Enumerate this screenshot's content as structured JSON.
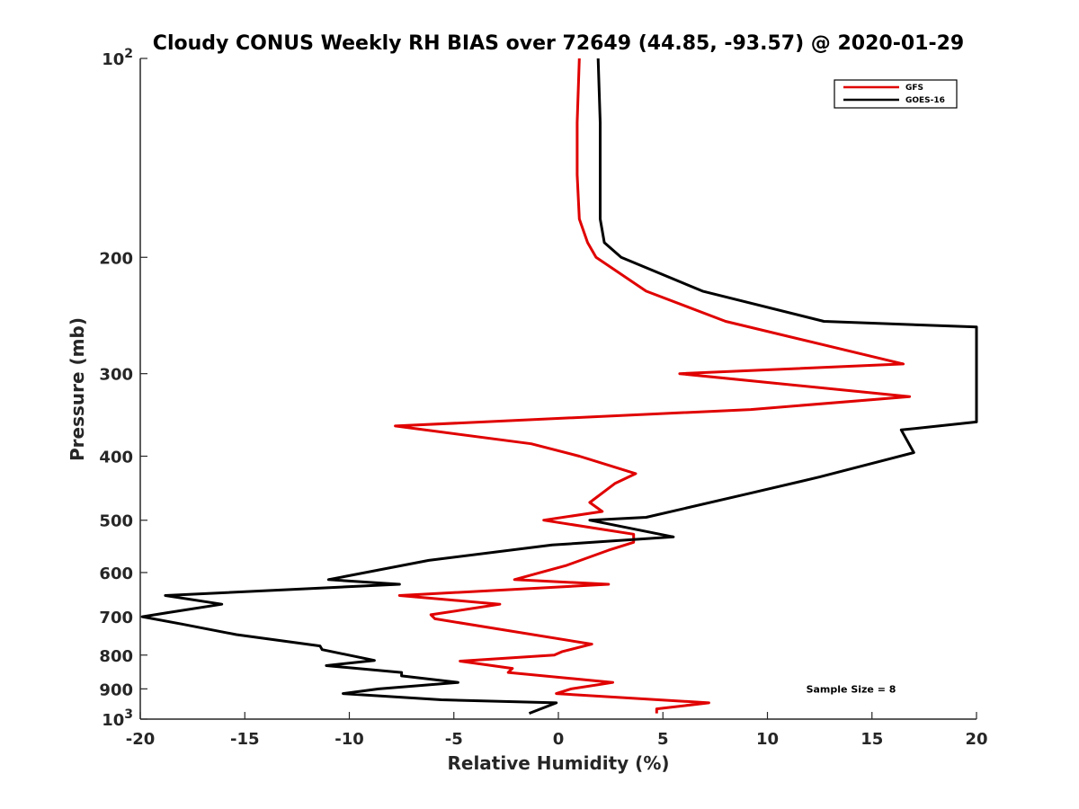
{
  "chart_data": {
    "type": "line",
    "title": "Cloudy CONUS Weekly RH BIAS over 72649 (44.85, -93.57) @ 2020-01-29",
    "xlabel": "Relative Humidity (%)",
    "ylabel": "Pressure (mb)",
    "xlim": [
      -20,
      20
    ],
    "ylim": [
      100,
      1000
    ],
    "y_scale": "log",
    "y_reversed": true,
    "xticks": [
      -20,
      -15,
      -10,
      -5,
      0,
      5,
      10,
      15,
      20
    ],
    "xtick_labels": [
      "-20",
      "-15",
      "-10",
      "-5",
      "0",
      "5",
      "10",
      "15",
      "20"
    ],
    "yticks": [
      100,
      200,
      300,
      400,
      500,
      600,
      700,
      800,
      900,
      1000
    ],
    "ytick_labels": [
      {
        "base": "10",
        "exp": "2"
      },
      {
        "base": "200",
        "exp": ""
      },
      {
        "base": "300",
        "exp": ""
      },
      {
        "base": "400",
        "exp": ""
      },
      {
        "base": "500",
        "exp": ""
      },
      {
        "base": "600",
        "exp": ""
      },
      {
        "base": "700",
        "exp": ""
      },
      {
        "base": "800",
        "exp": ""
      },
      {
        "base": "900",
        "exp": ""
      },
      {
        "base": "10",
        "exp": "3"
      }
    ],
    "legend_position": "top-right",
    "grid": false,
    "series": [
      {
        "name": "GFS",
        "color": "#e00000",
        "points": [
          [
            1.0,
            100
          ],
          [
            0.9,
            125
          ],
          [
            0.9,
            150
          ],
          [
            1.0,
            175
          ],
          [
            1.4,
            190
          ],
          [
            1.8,
            200
          ],
          [
            4.2,
            225
          ],
          [
            8.0,
            250
          ],
          [
            16.5,
            290
          ],
          [
            5.8,
            300
          ],
          [
            16.8,
            325
          ],
          [
            9.2,
            340
          ],
          [
            -7.8,
            360
          ],
          [
            -1.3,
            383
          ],
          [
            1.0,
            400
          ],
          [
            3.7,
            425
          ],
          [
            2.7,
            440
          ],
          [
            1.5,
            470
          ],
          [
            2.1,
            485
          ],
          [
            -0.7,
            500
          ],
          [
            3.6,
            525
          ],
          [
            3.6,
            540
          ],
          [
            2.4,
            555
          ],
          [
            0.4,
            585
          ],
          [
            -2.1,
            615
          ],
          [
            2.4,
            625
          ],
          [
            -7.6,
            650
          ],
          [
            -2.8,
            670
          ],
          [
            -6.1,
            695
          ],
          [
            -5.9,
            705
          ],
          [
            1.6,
            770
          ],
          [
            0.2,
            790
          ],
          [
            -0.2,
            800
          ],
          [
            -4.7,
            817
          ],
          [
            -2.2,
            838
          ],
          [
            -2.4,
            850
          ],
          [
            2.6,
            880
          ],
          [
            0.6,
            900
          ],
          [
            -0.1,
            915
          ],
          [
            7.2,
            945
          ],
          [
            4.7,
            965
          ],
          [
            4.7,
            980
          ]
        ]
      },
      {
        "name": "GOES-16",
        "color": "#000000",
        "points": [
          [
            1.9,
            100
          ],
          [
            2.0,
            125
          ],
          [
            2.0,
            150
          ],
          [
            2.0,
            175
          ],
          [
            2.2,
            190
          ],
          [
            3.0,
            200
          ],
          [
            6.9,
            225
          ],
          [
            12.7,
            250
          ],
          [
            20.0,
            255
          ],
          [
            20.0,
            355
          ],
          [
            16.4,
            365
          ],
          [
            17.0,
            395
          ],
          [
            12.5,
            430
          ],
          [
            9.2,
            455
          ],
          [
            4.2,
            495
          ],
          [
            1.5,
            500
          ],
          [
            5.5,
            530
          ],
          [
            -0.3,
            545
          ],
          [
            -6.2,
            575
          ],
          [
            -11.0,
            615
          ],
          [
            -7.6,
            625
          ],
          [
            -18.8,
            650
          ],
          [
            -16.1,
            670
          ],
          [
            -18.7,
            690
          ],
          [
            -19.9,
            700
          ],
          [
            -18.0,
            718
          ],
          [
            -15.4,
            745
          ],
          [
            -11.4,
            775
          ],
          [
            -11.3,
            785
          ],
          [
            -8.8,
            815
          ],
          [
            -11.1,
            830
          ],
          [
            -7.5,
            850
          ],
          [
            -7.5,
            860
          ],
          [
            -4.8,
            880
          ],
          [
            -8.6,
            900
          ],
          [
            -10.3,
            915
          ],
          [
            -5.6,
            935
          ],
          [
            -0.1,
            945
          ],
          [
            -1.4,
            980
          ]
        ]
      }
    ],
    "annotations": [
      {
        "text": "Sample Size = 8",
        "x": 14.0,
        "y": 900
      }
    ]
  }
}
